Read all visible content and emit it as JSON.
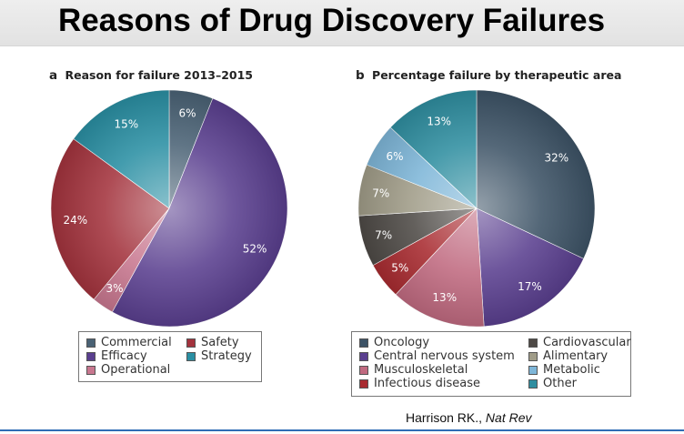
{
  "slide": {
    "title": "Reasons of Drug Discovery Failures",
    "citation_author": "Harrison RK.,",
    "citation_journal": "Nat Rev"
  },
  "chart_data": [
    {
      "type": "pie",
      "panel_letter": "a",
      "title": "Reason for failure 2013–2015",
      "slices": [
        {
          "name": "Commercial",
          "value": 6,
          "label": "6%",
          "color": "#4a6275"
        },
        {
          "name": "Efficacy",
          "value": 52,
          "label": "52%",
          "color": "#5a3f8f"
        },
        {
          "name": "Operational",
          "value": 3,
          "label": "3%",
          "color": "#c8778f"
        },
        {
          "name": "Safety",
          "value": 24,
          "label": "24%",
          "color": "#a3333d"
        },
        {
          "name": "Strategy",
          "value": 15,
          "label": "15%",
          "color": "#2a8fa3"
        }
      ],
      "legend_order": [
        "Commercial",
        "Efficacy",
        "Operational",
        "Safety",
        "Strategy"
      ]
    },
    {
      "type": "pie",
      "panel_letter": "b",
      "title": "Percentage failure by therapeutic area",
      "slices": [
        {
          "name": "Oncology",
          "value": 32,
          "label": "32%",
          "color": "#3d5366"
        },
        {
          "name": "Central nervous system",
          "value": 17,
          "label": "17%",
          "color": "#5a3f8f"
        },
        {
          "name": "Musculoskeletal",
          "value": 13,
          "label": "13%",
          "color": "#c06a80"
        },
        {
          "name": "Infectious disease",
          "value": 5,
          "label": "5%",
          "color": "#a82b30"
        },
        {
          "name": "Cardiovascular",
          "value": 7,
          "label": "7%",
          "color": "#4e4a46"
        },
        {
          "name": "Alimentary",
          "value": 7,
          "label": "7%",
          "color": "#a09c88"
        },
        {
          "name": "Metabolic",
          "value": 6,
          "label": "6%",
          "color": "#7eb6d8"
        },
        {
          "name": "Other",
          "value": 13,
          "label": "13%",
          "color": "#2f8ea0"
        }
      ],
      "legend_order": [
        "Oncology",
        "Central nervous system",
        "Musculoskeletal",
        "Infectious disease",
        "Cardiovascular",
        "Alimentary",
        "Metabolic",
        "Other"
      ]
    }
  ]
}
